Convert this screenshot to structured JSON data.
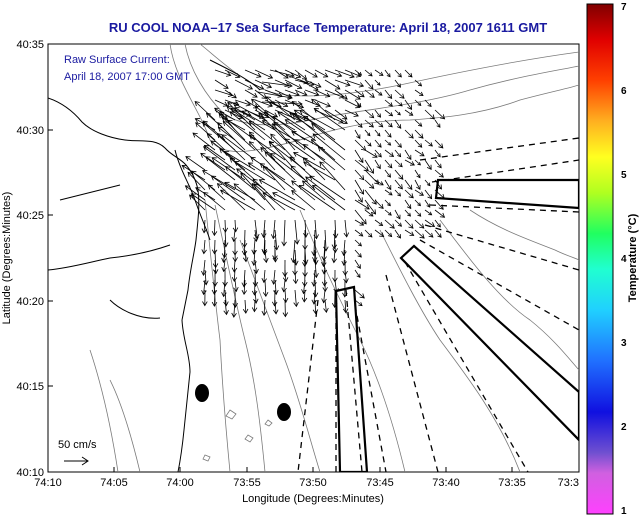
{
  "title": "RU COOL  NOAA–17  Sea Surface Temperature:  April 18, 2007 1611 GMT",
  "inset": {
    "line1": "Raw Surface Current:",
    "line2": "April 18, 2007 17:00 GMT"
  },
  "scale_label": "50 cm/s",
  "axes": {
    "xlabel": "Longitude (Degrees:Minutes)",
    "ylabel": "Latitude (Degrees:Minutes)",
    "x_ticks": [
      "74:10",
      "74:05",
      "74:00",
      "73:55",
      "73:50",
      "73:45",
      "73:40",
      "73:35",
      "73:3"
    ],
    "y_ticks": [
      "40:35",
      "40:30",
      "40:25",
      "40:20",
      "40:15",
      "40:10"
    ]
  },
  "colorbar": {
    "label": "Temperature (°C)",
    "ticks": [
      "7",
      "6",
      "5",
      "4",
      "3",
      "2",
      "1"
    ],
    "range": [
      1,
      7
    ]
  },
  "colors": {
    "text_blue": "#1a1aa0",
    "line": "#000000",
    "contour": "#7a7a7a"
  },
  "chart_data": {
    "type": "map",
    "title": "RU COOL  NOAA–17  Sea Surface Temperature:  April 18, 2007 1611 GMT",
    "xlabel": "Longitude (Degrees:Minutes)",
    "ylabel": "Latitude (Degrees:Minutes)",
    "xlim_minutes_west": [
      4450,
      4410
    ],
    "ylim_minutes_north": [
      2410,
      2435
    ],
    "grid": false
  }
}
